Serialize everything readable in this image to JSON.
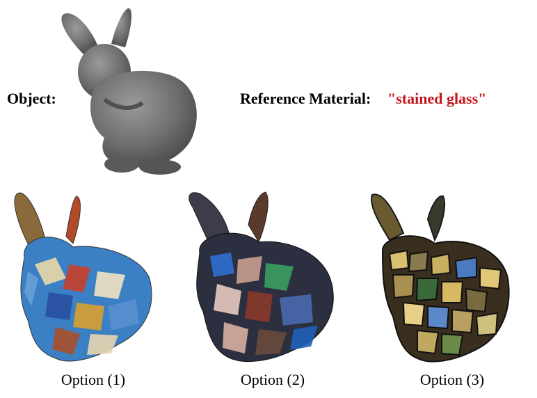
{
  "object_label": "Object:",
  "reference_label": "Reference Material:",
  "reference_value": "\"stained glass\"",
  "reference_color": "#c0161e",
  "options": [
    {
      "caption": "Option (1)"
    },
    {
      "caption": "Option (2)"
    },
    {
      "caption": "Option (3)"
    }
  ]
}
